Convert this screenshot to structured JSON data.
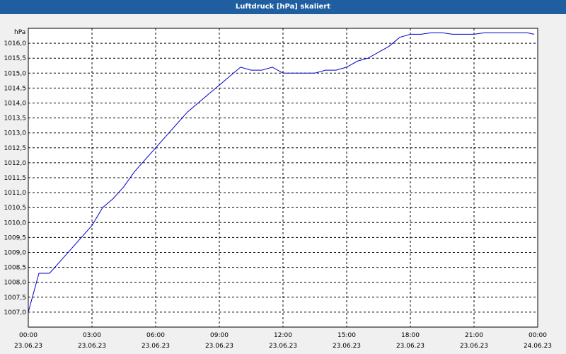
{
  "window": {
    "title": "Luftdruck [hPa] skaliert"
  },
  "chart_data": {
    "type": "line",
    "title": "Luftdruck [hPa] skaliert",
    "ylabel": "hPa",
    "xlabel": "",
    "ylim": [
      1006.5,
      1016.5
    ],
    "xlim": [
      "23.06.23 00:00",
      "24.06.23 00:00"
    ],
    "grid": true,
    "legend": "none",
    "colors": {
      "series": "#0000c8",
      "title_bar": "#1f5fa0"
    },
    "y_ticks": [
      "1007,0",
      "1007,5",
      "1008,0",
      "1008,5",
      "1009,0",
      "1009,5",
      "1010,0",
      "1010,5",
      "1011,0",
      "1011,5",
      "1012,0",
      "1012,5",
      "1013,0",
      "1013,5",
      "1014,0",
      "1014,5",
      "1015,0",
      "1015,5",
      "1016,0"
    ],
    "x_ticks": [
      {
        "time": "00:00",
        "date": "23.06.23"
      },
      {
        "time": "03:00",
        "date": "23.06.23"
      },
      {
        "time": "06:00",
        "date": "23.06.23"
      },
      {
        "time": "09:00",
        "date": "23.06.23"
      },
      {
        "time": "12:00",
        "date": "23.06.23"
      },
      {
        "time": "15:00",
        "date": "23.06.23"
      },
      {
        "time": "18:00",
        "date": "23.06.23"
      },
      {
        "time": "21:00",
        "date": "23.06.23"
      },
      {
        "time": "00:00",
        "date": "24.06.23"
      }
    ],
    "series": [
      {
        "x": [
          "00:00",
          "00:30",
          "01:00",
          "01:30",
          "02:00",
          "02:30",
          "03:00",
          "03:30",
          "04:00",
          "04:30",
          "05:00",
          "05:30",
          "06:00",
          "06:30",
          "07:00",
          "07:30",
          "08:00",
          "08:30",
          "09:00",
          "09:30",
          "10:00",
          "10:30",
          "11:00",
          "11:30",
          "12:00",
          "12:30",
          "13:00",
          "13:30",
          "14:00",
          "14:30",
          "15:00",
          "15:30",
          "16:00",
          "16:30",
          "17:00",
          "17:30",
          "18:00",
          "18:30",
          "19:00",
          "19:30",
          "20:00",
          "20:30",
          "21:00",
          "21:30",
          "22:00",
          "22:30",
          "23:00",
          "23:30",
          "23:50"
        ],
        "values": [
          1007.0,
          1008.3,
          1008.3,
          1008.7,
          1009.1,
          1009.5,
          1009.9,
          1010.5,
          1010.8,
          1011.2,
          1011.7,
          1012.1,
          1012.5,
          1012.9,
          1013.3,
          1013.7,
          1014.0,
          1014.3,
          1014.6,
          1014.9,
          1015.2,
          1015.1,
          1015.1,
          1015.2,
          1015.0,
          1015.0,
          1015.0,
          1015.0,
          1015.1,
          1015.1,
          1015.2,
          1015.4,
          1015.5,
          1015.7,
          1015.9,
          1016.2,
          1016.3,
          1016.3,
          1016.35,
          1016.35,
          1016.3,
          1016.3,
          1016.3,
          1016.35,
          1016.35,
          1016.35,
          1016.35,
          1016.35,
          1016.3
        ]
      }
    ]
  }
}
